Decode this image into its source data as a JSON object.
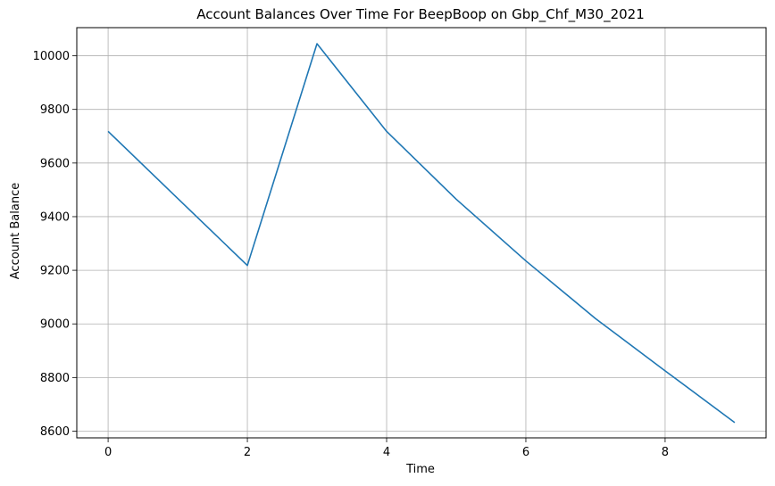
{
  "chart_data": {
    "type": "line",
    "title": "Account Balances Over Time For BeepBoop on Gbp_Chf_M30_2021",
    "xlabel": "Time",
    "ylabel": "Account Balance",
    "x": [
      0,
      1,
      2,
      3,
      4,
      5,
      6,
      7,
      8,
      9
    ],
    "series": [
      {
        "values": [
          9718,
          9468,
          9218,
          10045,
          9718,
          9465,
          9235,
          9020,
          8825,
          8632
        ]
      }
    ],
    "xlim": [
      -0.45,
      9.45
    ],
    "ylim": [
      8575,
      10105
    ],
    "xticks": [
      0,
      2,
      4,
      6,
      8
    ],
    "yticks": [
      8600,
      8800,
      9000,
      9200,
      9400,
      9600,
      9800,
      10000
    ],
    "grid": true,
    "colors": {
      "line": "#1f77b4",
      "grid": "#b0b0b0"
    }
  }
}
